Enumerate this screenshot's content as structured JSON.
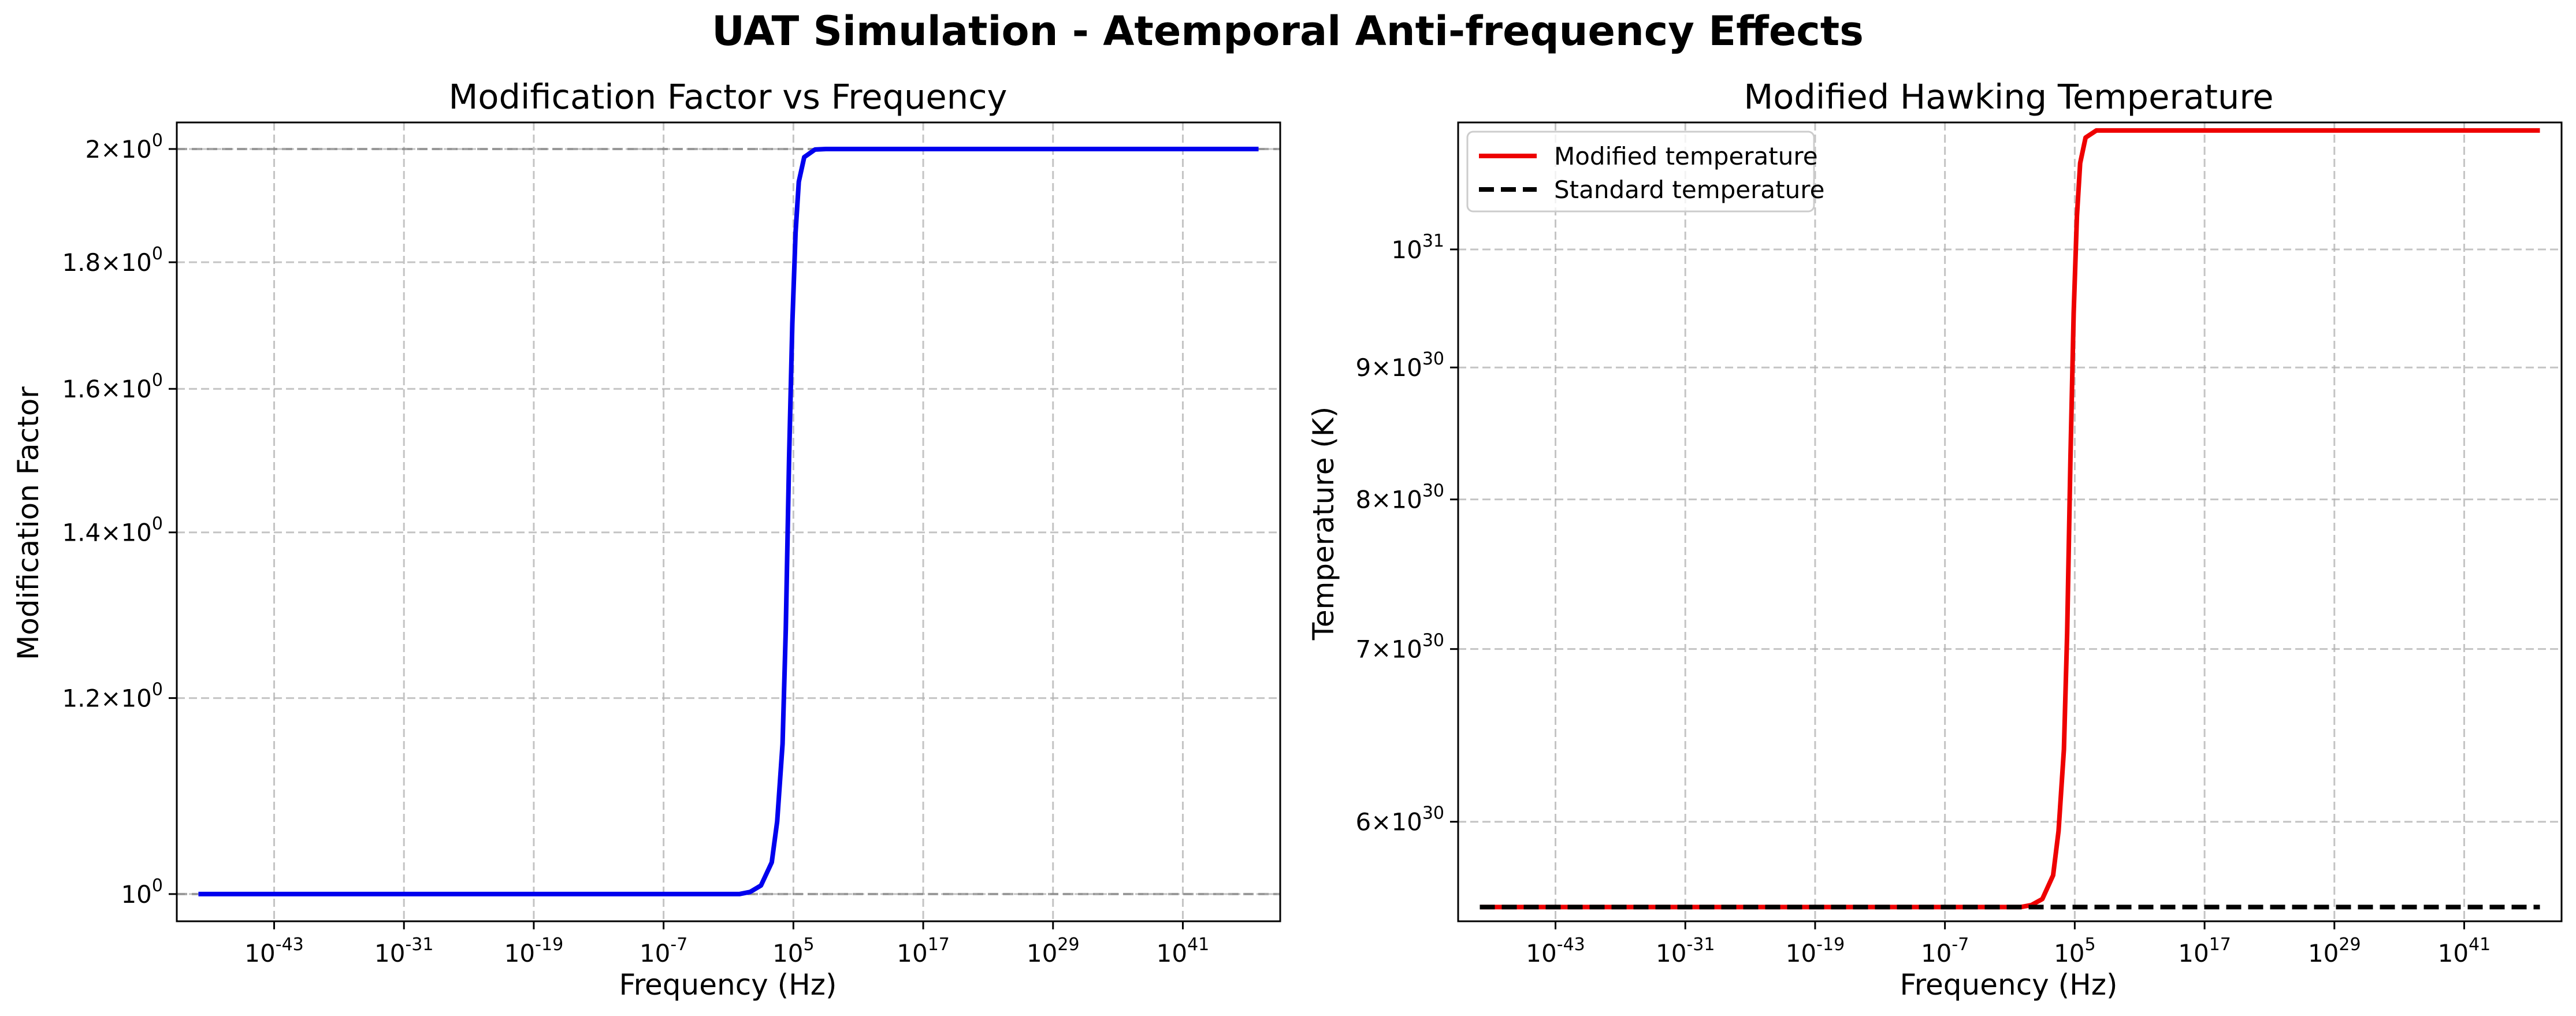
{
  "figure": {
    "title": "UAT Simulation - Atemporal Anti-frequency Effects"
  },
  "chart_data": [
    {
      "type": "line",
      "title": "Modification Factor vs Frequency",
      "xlabel": "Frequency (Hz)",
      "ylabel": "Modification Factor",
      "xscale": "log",
      "yscale": "log",
      "xlim_exponent": [
        -52,
        50
      ],
      "ylim": [
        0.975,
        2.05
      ],
      "xticks_exponent": [
        -43,
        -31,
        -19,
        -7,
        5,
        17,
        29,
        41
      ],
      "yticks": [
        {
          "value": 1.0,
          "mantissa": "",
          "exp": "0"
        },
        {
          "value": 1.2,
          "mantissa": "1.2",
          "exp": "0"
        },
        {
          "value": 1.4,
          "mantissa": "1.4",
          "exp": "0"
        },
        {
          "value": 1.6,
          "mantissa": "1.6",
          "exp": "0"
        },
        {
          "value": 1.8,
          "mantissa": "1.8",
          "exp": "0"
        },
        {
          "value": 2.0,
          "mantissa": "2",
          "exp": "0"
        }
      ],
      "grid": true,
      "reference_lines": [
        1.0,
        2.0
      ],
      "series": [
        {
          "color": "#0000ee",
          "x_exponent": [
            -50,
            -30,
            -10,
            0,
            1,
            2,
            3,
            3.5,
            4,
            4.3,
            4.6,
            4.9,
            5.2,
            5.5,
            6,
            7,
            8,
            20,
            40,
            48
          ],
          "y": [
            1.0,
            1.0,
            1.0,
            1.0,
            1.002,
            1.008,
            1.03,
            1.07,
            1.15,
            1.28,
            1.5,
            1.7,
            1.85,
            1.94,
            1.985,
            1.999,
            2.0,
            2.0,
            2.0,
            2.0
          ]
        }
      ]
    },
    {
      "type": "line",
      "title": "Modified Hawking Temperature",
      "xlabel": "Frequency (Hz)",
      "ylabel": "Temperature (K)",
      "xscale": "log",
      "yscale": "log",
      "xlim_exponent": [
        -52,
        50
      ],
      "ylim": [
        5.49e+30,
        1.12e+31
      ],
      "xticks_exponent": [
        -43,
        -31,
        -19,
        -7,
        5,
        17,
        29,
        41
      ],
      "yticks": [
        {
          "value": 6e+30,
          "mantissa": "6",
          "exp": "30"
        },
        {
          "value": 7e+30,
          "mantissa": "7",
          "exp": "30"
        },
        {
          "value": 8e+30,
          "mantissa": "8",
          "exp": "30"
        },
        {
          "value": 9e+30,
          "mantissa": "9",
          "exp": "30"
        },
        {
          "value": 1e+31,
          "mantissa": "",
          "exp": "31"
        }
      ],
      "grid": true,
      "legend": {
        "location": "upper-left",
        "entries": [
          {
            "label": "Modified temperature",
            "color": "#ee0000",
            "style": "solid"
          },
          {
            "label": "Standard temperature",
            "color": "#000000",
            "style": "dashed"
          }
        ]
      },
      "series": [
        {
          "name": "Modified temperature",
          "color": "#ee0000",
          "style": "solid",
          "x_exponent": [
            -50,
            -30,
            -10,
            0,
            1,
            2,
            3,
            3.5,
            4,
            4.3,
            4.6,
            4.9,
            5.2,
            5.5,
            6,
            7,
            8,
            20,
            40,
            48
          ],
          "y": [
            5.56e+30,
            5.56e+30,
            5.56e+30,
            5.56e+30,
            5.57e+30,
            5.6e+30,
            5.72e+30,
            5.95e+30,
            6.4e+30,
            7.1e+30,
            8.3e+30,
            9.45e+30,
            1.03e+31,
            1.08e+31,
            1.105e+31,
            1.112e+31,
            1.112e+31,
            1.112e+31,
            1.112e+31,
            1.112e+31
          ]
        },
        {
          "name": "Standard temperature",
          "color": "#000000",
          "style": "dashed",
          "x_exponent": [
            -50,
            48
          ],
          "y": [
            5.56e+30,
            5.56e+30
          ]
        }
      ]
    }
  ]
}
